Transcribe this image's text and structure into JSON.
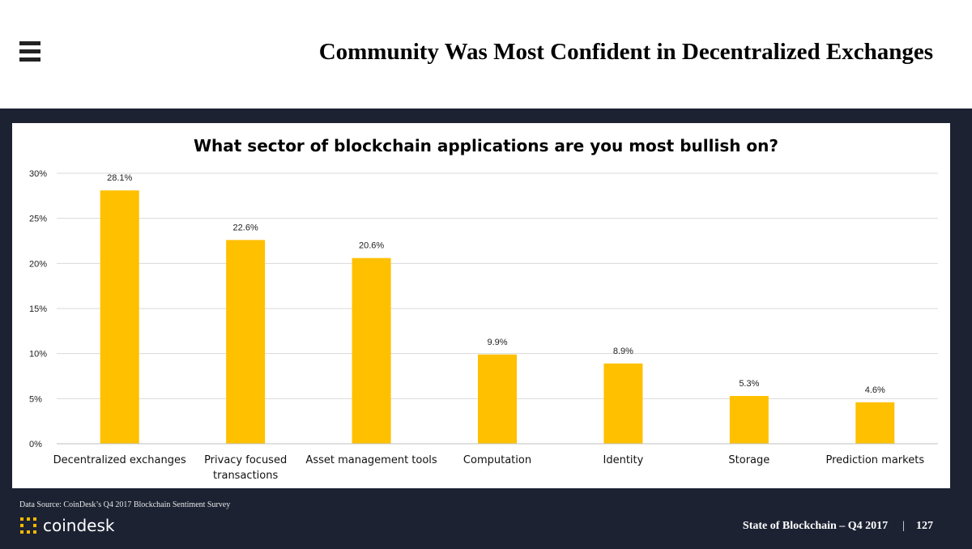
{
  "header": {
    "title": "Community Was Most Confident in Decentralized Exchanges",
    "menu_icon": "hamburger-menu-icon"
  },
  "chart_data": {
    "type": "bar",
    "title": "What sector of blockchain applications are you most bullish on?",
    "categories": [
      "Decentralized exchanges",
      "Privacy focused transactions",
      "Asset management tools",
      "Computation",
      "Identity",
      "Storage",
      "Prediction markets"
    ],
    "values": [
      28.1,
      22.6,
      20.6,
      9.9,
      8.9,
      5.3,
      4.6
    ],
    "value_labels": [
      "28.1%",
      "22.6%",
      "20.6%",
      "9.9%",
      "8.9%",
      "5.3%",
      "4.6%"
    ],
    "yticks": [
      "0%",
      "5%",
      "10%",
      "15%",
      "20%",
      "25%",
      "30%"
    ],
    "ylim": [
      0,
      30
    ],
    "xlabel": "",
    "ylabel": "",
    "grid": true,
    "bar_color": "#ffc000"
  },
  "footer": {
    "source": "Data Source: CoinDesk’s Q4 2017 Blockchain Sentiment Survey",
    "logo_text": "coindesk",
    "report": "State of Blockchain – Q4 2017",
    "separator": "|",
    "page_number": "127"
  },
  "colors": {
    "panel": "#1c2232",
    "bar": "#ffc000",
    "logo_mark": "#f5b800"
  }
}
